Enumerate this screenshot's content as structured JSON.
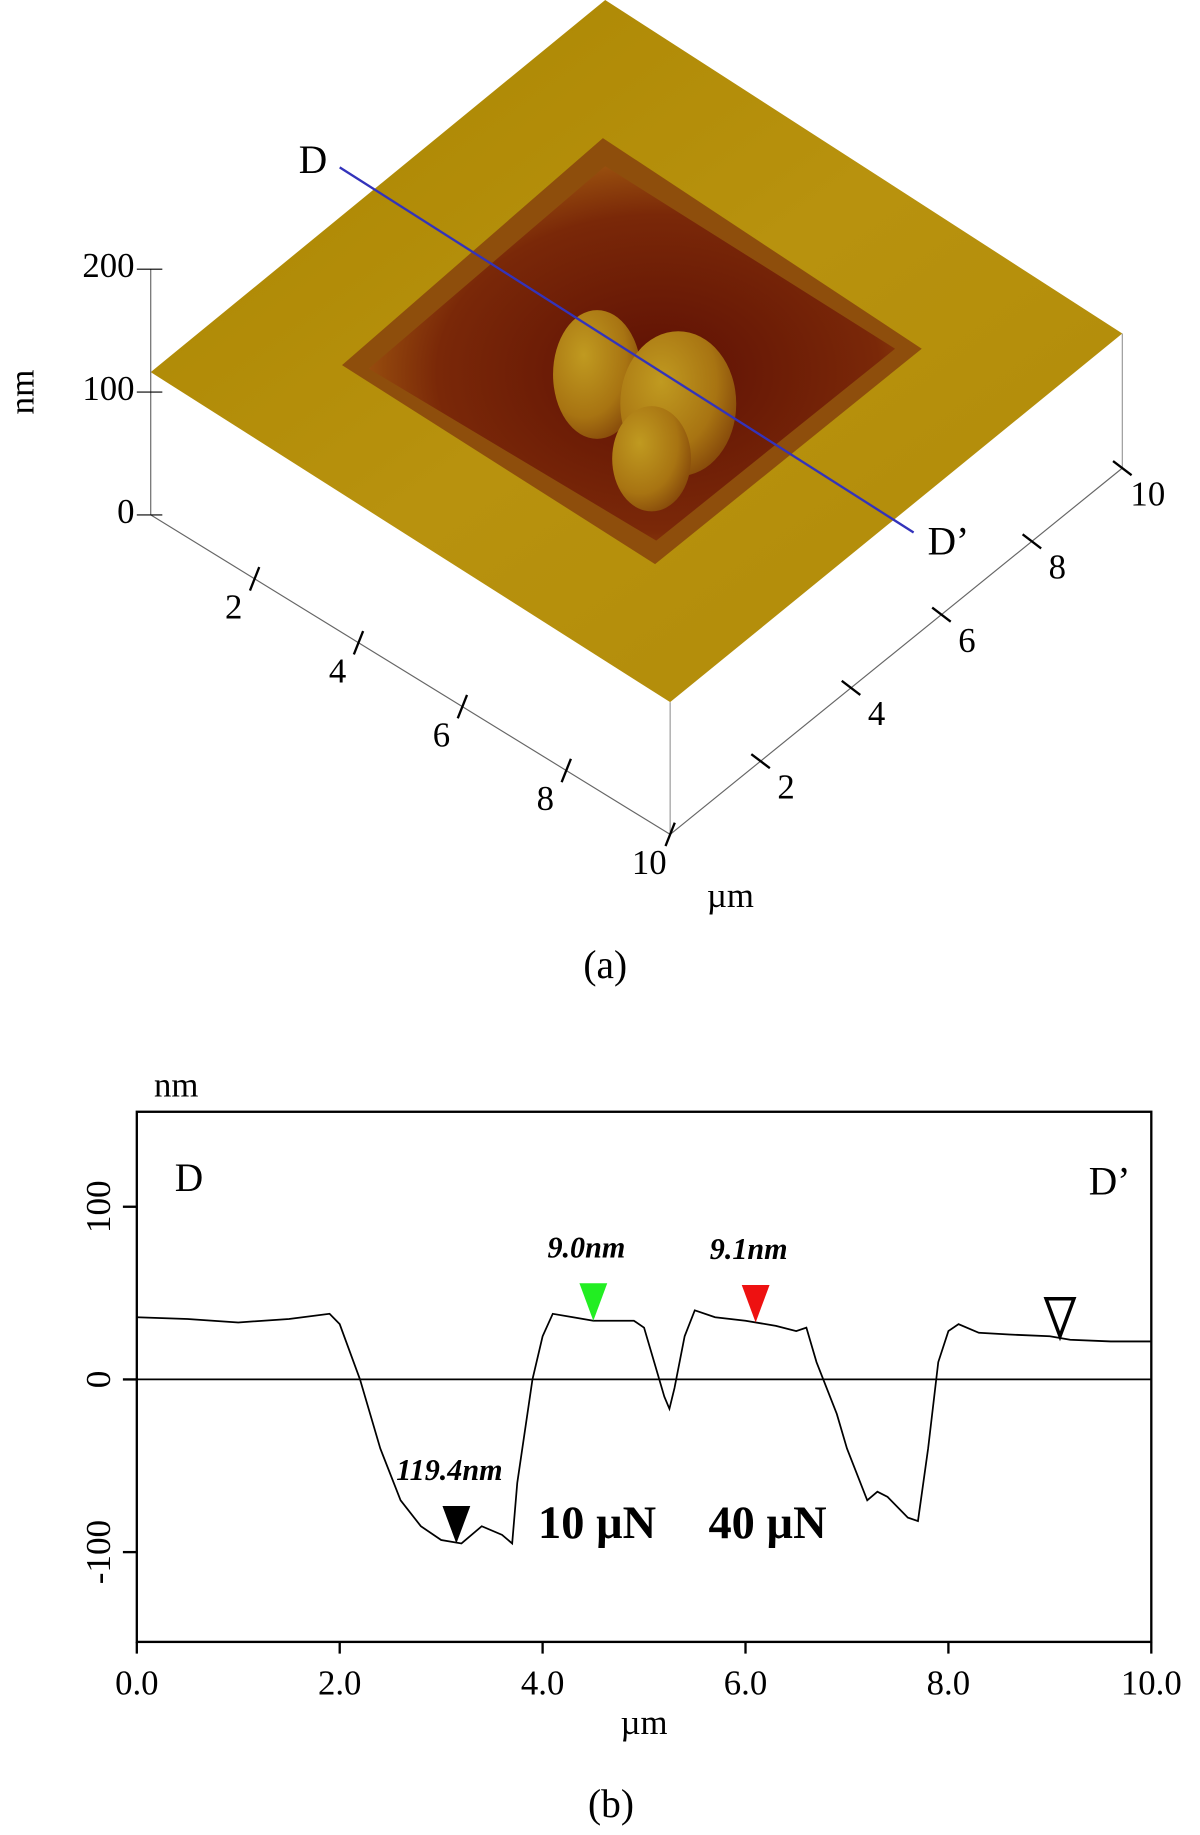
{
  "chart_data": [
    {
      "type": "surface",
      "caption": "(a)",
      "zlabel": "nm",
      "xylabel": "µm",
      "zlim": [
        0,
        200
      ],
      "zticks": [
        0,
        100,
        200
      ],
      "xlim": [
        0,
        10
      ],
      "xticks": [
        2,
        4,
        6,
        8,
        10
      ],
      "ylim": [
        0,
        10
      ],
      "yticks": [
        2,
        4,
        6,
        8,
        10
      ],
      "section_start": "D",
      "section_end": "D’",
      "section_color": "#3333bb"
    },
    {
      "type": "line",
      "caption": "(b)",
      "ylabel": "nm",
      "xlabel": "µm",
      "xlim": [
        0,
        10
      ],
      "xticks": [
        {
          "value": 0,
          "label": "0.0"
        },
        {
          "value": 2,
          "label": "2.0"
        },
        {
          "value": 4,
          "label": "4.0"
        },
        {
          "value": 6,
          "label": "6.0"
        },
        {
          "value": 8,
          "label": "8.0"
        },
        {
          "value": 10,
          "label": "10.0"
        }
      ],
      "ylim": [
        -152,
        155
      ],
      "yticks": [
        -100,
        0,
        100
      ],
      "zero_line": true,
      "x": [
        0,
        0.5,
        1.0,
        1.5,
        1.9,
        2.0,
        2.2,
        2.4,
        2.6,
        2.8,
        3.0,
        3.2,
        3.4,
        3.6,
        3.7,
        3.75,
        3.9,
        4.0,
        4.1,
        4.3,
        4.5,
        4.9,
        5.0,
        5.1,
        5.2,
        5.25,
        5.3,
        5.4,
        5.5,
        5.7,
        6.0,
        6.3,
        6.5,
        6.6,
        6.7,
        6.9,
        7.0,
        7.2,
        7.3,
        7.4,
        7.6,
        7.7,
        7.8,
        7.9,
        8.0,
        8.1,
        8.3,
        8.6,
        9.0,
        9.2,
        9.6,
        10.0
      ],
      "values": [
        36,
        35,
        33,
        35,
        38,
        32,
        0,
        -40,
        -70,
        -85,
        -93,
        -95,
        -85,
        -90,
        -95,
        -60,
        0,
        25,
        38,
        36,
        34,
        34,
        30,
        10,
        -10,
        -17,
        -5,
        25,
        40,
        36,
        34,
        31,
        28,
        30,
        10,
        -20,
        -40,
        -70,
        -65,
        -68,
        -80,
        -82,
        -40,
        10,
        28,
        32,
        27,
        26,
        25,
        23,
        22,
        22
      ],
      "color": "#000000",
      "start_label": "D",
      "end_label": "D’",
      "end_label_color": "#2222cc",
      "cursors": [
        {
          "x": 3.15,
          "y": -95,
          "color": "#000000",
          "label": "119.4nm"
        },
        {
          "x": 4.5,
          "y": 34,
          "color": "#22ee22",
          "label": "9.0nm"
        },
        {
          "x": 6.1,
          "y": 33,
          "color": "#ee1111",
          "label": "9.1nm"
        },
        {
          "x": 9.1,
          "y": 25,
          "color": "#ffffff"
        }
      ],
      "annotations": [
        "10 µN",
        "40 µN"
      ],
      "annotation_color": "#ee1111"
    }
  ]
}
